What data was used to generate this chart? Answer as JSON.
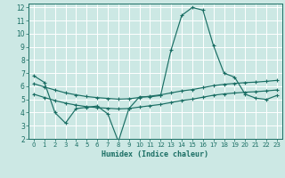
{
  "title": "",
  "xlabel": "Humidex (Indice chaleur)",
  "bg_color": "#cce8e4",
  "line_color": "#1a6e64",
  "grid_color": "#ffffff",
  "xlim": [
    -0.5,
    23.5
  ],
  "ylim": [
    2,
    12.3
  ],
  "yticks": [
    2,
    3,
    4,
    5,
    6,
    7,
    8,
    9,
    10,
    11,
    12
  ],
  "xticks": [
    0,
    1,
    2,
    3,
    4,
    5,
    6,
    7,
    8,
    9,
    10,
    11,
    12,
    13,
    14,
    15,
    16,
    17,
    18,
    19,
    20,
    21,
    22,
    23
  ],
  "line1_x": [
    0,
    1,
    2,
    3,
    4,
    5,
    6,
    7,
    8,
    9,
    10,
    11,
    12,
    13,
    14,
    15,
    16,
    17,
    18,
    19,
    20,
    21,
    22,
    23
  ],
  "line1_y": [
    6.8,
    6.3,
    4.0,
    3.2,
    4.3,
    4.4,
    4.5,
    3.9,
    1.8,
    4.3,
    5.2,
    5.2,
    5.3,
    8.8,
    11.4,
    12.0,
    11.8,
    9.1,
    7.0,
    6.7,
    5.4,
    5.1,
    5.0,
    5.3
  ],
  "line2_x": [
    0,
    1,
    2,
    3,
    4,
    5,
    6,
    7,
    8,
    9,
    10,
    11,
    12,
    13,
    14,
    15,
    16,
    17,
    18,
    19,
    20,
    21,
    22,
    23
  ],
  "line2_y": [
    6.2,
    5.95,
    5.72,
    5.5,
    5.35,
    5.22,
    5.14,
    5.08,
    5.02,
    5.05,
    5.15,
    5.25,
    5.35,
    5.5,
    5.65,
    5.75,
    5.9,
    6.05,
    6.15,
    6.22,
    6.28,
    6.32,
    6.38,
    6.45
  ],
  "line3_x": [
    0,
    1,
    2,
    3,
    4,
    5,
    6,
    7,
    8,
    9,
    10,
    11,
    12,
    13,
    14,
    15,
    16,
    17,
    18,
    19,
    20,
    21,
    22,
    23
  ],
  "line3_y": [
    5.4,
    5.15,
    4.92,
    4.72,
    4.57,
    4.45,
    4.38,
    4.33,
    4.28,
    4.31,
    4.42,
    4.52,
    4.62,
    4.77,
    4.92,
    5.02,
    5.17,
    5.32,
    5.42,
    5.49,
    5.55,
    5.59,
    5.65,
    5.72
  ]
}
